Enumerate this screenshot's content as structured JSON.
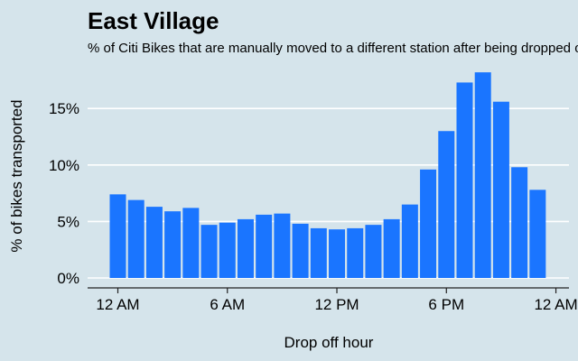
{
  "chart_data": {
    "type": "bar",
    "title": "East Village",
    "subtitle": "% of Citi Bikes that are manually moved to a different station after being dropped off",
    "xlabel": "Drop off hour",
    "ylabel": "% of bikes transported",
    "categories": [
      "12 AM",
      "1 AM",
      "2 AM",
      "3 AM",
      "4 AM",
      "5 AM",
      "6 AM",
      "7 AM",
      "8 AM",
      "9 AM",
      "10 AM",
      "11 AM",
      "12 PM",
      "1 PM",
      "2 PM",
      "3 PM",
      "4 PM",
      "5 PM",
      "6 PM",
      "7 PM",
      "8 PM",
      "9 PM",
      "10 PM",
      "11 PM"
    ],
    "values": [
      7.4,
      6.9,
      6.3,
      5.9,
      6.2,
      4.7,
      4.9,
      5.2,
      5.6,
      5.7,
      4.8,
      4.4,
      4.3,
      4.4,
      4.7,
      5.2,
      6.5,
      9.6,
      13.0,
      17.3,
      18.2,
      15.6,
      9.8,
      7.8
    ],
    "x_ticks": [
      "12 AM",
      "6 AM",
      "12 PM",
      "6 PM",
      "12 AM"
    ],
    "y_ticks": [
      "0%",
      "5%",
      "10%",
      "15%"
    ],
    "y_tick_values": [
      0,
      5,
      10,
      15
    ],
    "ylim": [
      0,
      18.5
    ],
    "grid": "horizontal",
    "bar_color": "#1a75ff"
  }
}
